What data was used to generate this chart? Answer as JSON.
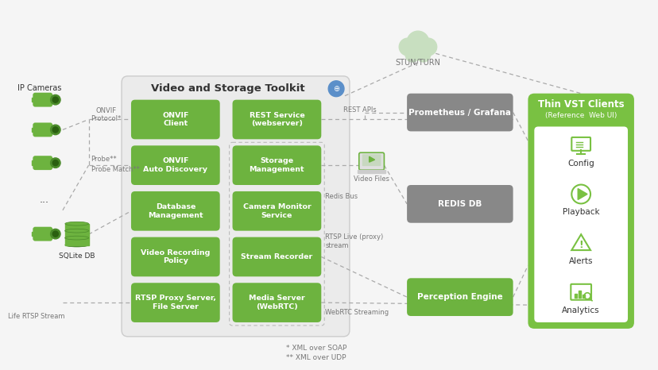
{
  "bg_color": "#f5f5f5",
  "green": "#6db33f",
  "thin_green": "#79c142",
  "gray_color": "#888888",
  "vst_bg": "#ebebeb",
  "white": "#ffffff",
  "text_dark": "#333333",
  "text_gray": "#777777",
  "arrow_color": "#aaaaaa",
  "blue_icon": "#5b8fc9",
  "left_blocks": [
    "ONVIF\nClient",
    "ONVIF\nAuto Discovery",
    "Database\nManagement",
    "Video Recording\nPolicy",
    "RTSP Proxy Server,\nFile Server"
  ],
  "right_blocks": [
    "REST Service\n(webserver)",
    "Storage\nManagement",
    "Camera Monitor\nService",
    "Stream Recorder",
    "Media Server\n(WebRTC)"
  ],
  "gray_blocks": [
    "Prometheus / Grafana",
    "REDIS DB"
  ],
  "green_block_right": "Perception Engine",
  "thin_vst_items": [
    "Config",
    "Playback",
    "Alerts",
    "Analytics"
  ],
  "vst_title": "Video and Storage Toolkit",
  "thin_vst_title": "Thin VST Clients",
  "thin_vst_sub": "(Reference  Web UI)",
  "stun_label": "STUN/TURN",
  "sqlite_label": "SQLite DB",
  "ip_cameras_label": "IP Cameras",
  "life_rtsp_label": "Life RTSP Stream",
  "rest_apis_label": "REST APIs",
  "video_files_label": "Video Files",
  "redis_bus_label": "Redis Bus",
  "rtsp_live_label": "RTSP Live (proxy)\nstream",
  "webrtc_label": "WebRTC Streaming",
  "onvif_label": "ONVIF\nProtocol*",
  "probe_label": "Probe**",
  "probe_match_label": "Probe Match**",
  "footnote1": "* XML over SOAP",
  "footnote2": "** XML over UDP"
}
